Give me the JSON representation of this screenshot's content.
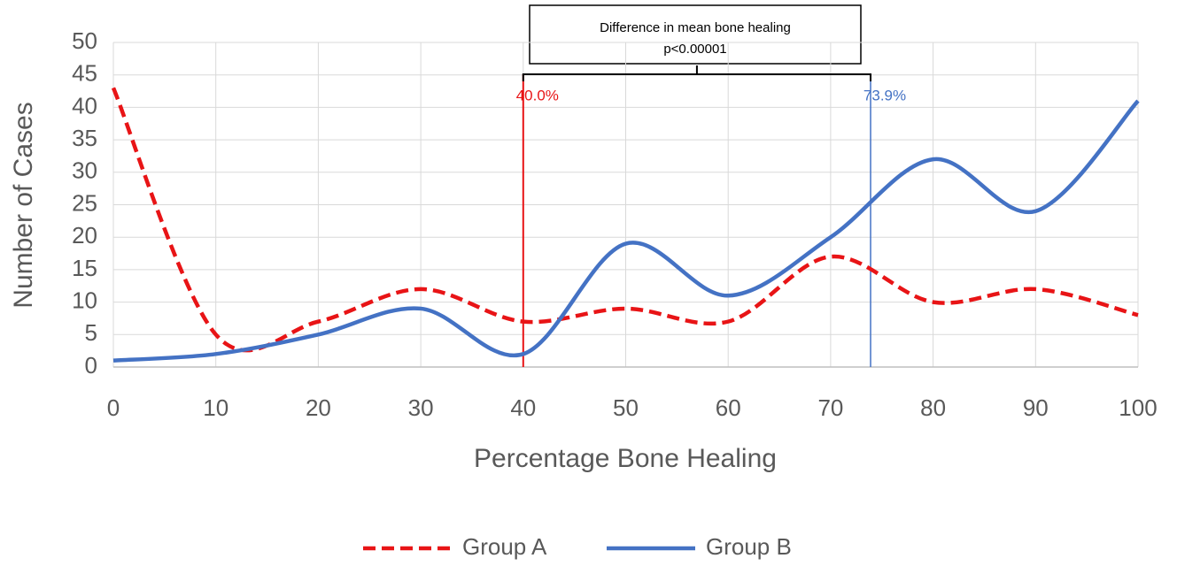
{
  "chart_data": {
    "type": "line",
    "x_label": "Percentage Bone Healing",
    "y_label": "Number of Cases",
    "x": [
      0,
      10,
      20,
      30,
      40,
      50,
      60,
      70,
      80,
      90,
      100
    ],
    "series": [
      {
        "name": "Group A",
        "color": "#e81416",
        "dash": true,
        "values": [
          43,
          5,
          7,
          12,
          7,
          9,
          7,
          17,
          10,
          12,
          8
        ]
      },
      {
        "name": "Group B",
        "color": "#4472c4",
        "dash": false,
        "values": [
          1,
          2,
          5,
          9,
          2,
          19,
          11,
          20,
          32,
          24,
          41
        ]
      }
    ],
    "xlim": [
      0,
      100
    ],
    "ylim": [
      0,
      50
    ],
    "xticks": [
      0,
      10,
      20,
      30,
      40,
      50,
      60,
      70,
      80,
      90,
      100
    ],
    "yticks": [
      0,
      5,
      10,
      15,
      20,
      25,
      30,
      35,
      40,
      45,
      50
    ],
    "grid": true,
    "legend": "bottom",
    "annotations": [
      {
        "x": 40.0,
        "label": "40.0%",
        "color": "#e81416"
      },
      {
        "x": 73.9,
        "label": "73.9%",
        "color": "#4472c4"
      }
    ],
    "annotation_box": [
      "Difference in mean bone healing",
      "p<0.00001"
    ]
  }
}
